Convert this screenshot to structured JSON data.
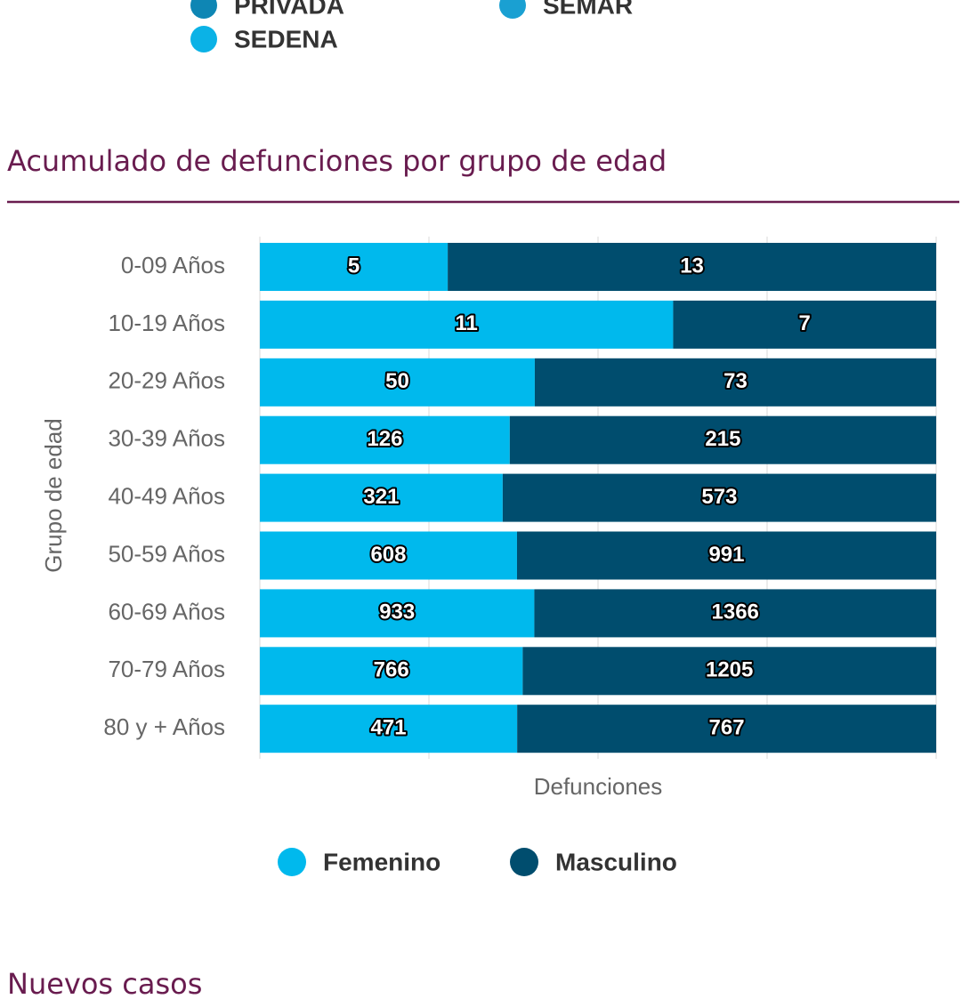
{
  "top_legend": [
    {
      "name": "PRIVADA",
      "color": "#0e86b4"
    },
    {
      "name": "SEMAR",
      "color": "#1aa0d2"
    },
    {
      "name": "SEDENA",
      "color": "#0bb2e6"
    }
  ],
  "section_title": "Acumulado de defunciones por grupo de edad",
  "chart_data": {
    "type": "bar",
    "orientation": "horizontal",
    "stacking": "percent",
    "categories": [
      "0-09 Años",
      "10-19 Años",
      "20-29 Años",
      "30-39 Años",
      "40-49 Años",
      "50-59 Años",
      "60-69 Años",
      "70-79 Años",
      "80 y + Años"
    ],
    "series": [
      {
        "name": "Femenino",
        "color": "#00b9ed",
        "values": [
          5,
          11,
          50,
          126,
          321,
          608,
          933,
          766,
          471
        ]
      },
      {
        "name": "Masculino",
        "color": "#004d6e",
        "values": [
          13,
          7,
          73,
          215,
          573,
          991,
          1366,
          1205,
          767
        ]
      }
    ],
    "xlabel": "Defunciones",
    "ylabel": "Grupo de edad",
    "grid": true,
    "legend": "bottom"
  },
  "next_section_title": "Nuevos casos"
}
